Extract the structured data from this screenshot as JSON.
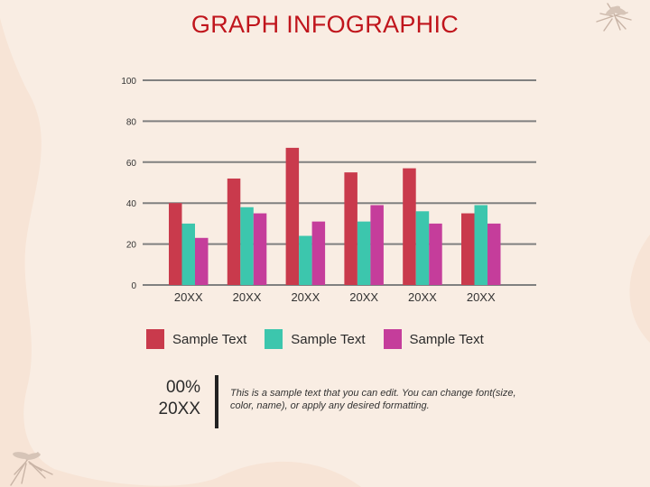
{
  "title": "GRAPH INFOGRAPHIC",
  "colors": {
    "background": "#f7e4d6",
    "panel": "#f9ede3",
    "title": "#c0151c",
    "series": [
      "#c93a4c",
      "#3cc6ad",
      "#c53d9b"
    ],
    "grid": "#808080"
  },
  "chart_data": {
    "type": "bar",
    "categories": [
      "20XX",
      "20XX",
      "20XX",
      "20XX",
      "20XX",
      "20XX"
    ],
    "series": [
      {
        "name": "Sample Text",
        "values": [
          40,
          52,
          67,
          55,
          57,
          35
        ]
      },
      {
        "name": "Sample Text",
        "values": [
          30,
          38,
          24,
          31,
          36,
          39
        ]
      },
      {
        "name": "Sample Text",
        "values": [
          23,
          35,
          31,
          39,
          30,
          30
        ]
      }
    ],
    "ylim": [
      0,
      100
    ],
    "yticks": [
      "0",
      "20",
      "40",
      "60",
      "80",
      "100"
    ],
    "grid": true,
    "legend": "bottom"
  },
  "legend": {
    "items": [
      {
        "label": "Sample Text",
        "color": "#c93a4c"
      },
      {
        "label": "Sample Text",
        "color": "#3cc6ad"
      },
      {
        "label": "Sample Text",
        "color": "#c53d9b"
      }
    ]
  },
  "stat": {
    "percent": "00%",
    "year": "20XX"
  },
  "description": "This is a sample text that you can edit. You can change font(size, color, name), or apply any desired formatting.",
  "icons": [
    "mosquito-icon",
    "mosquito-icon"
  ]
}
